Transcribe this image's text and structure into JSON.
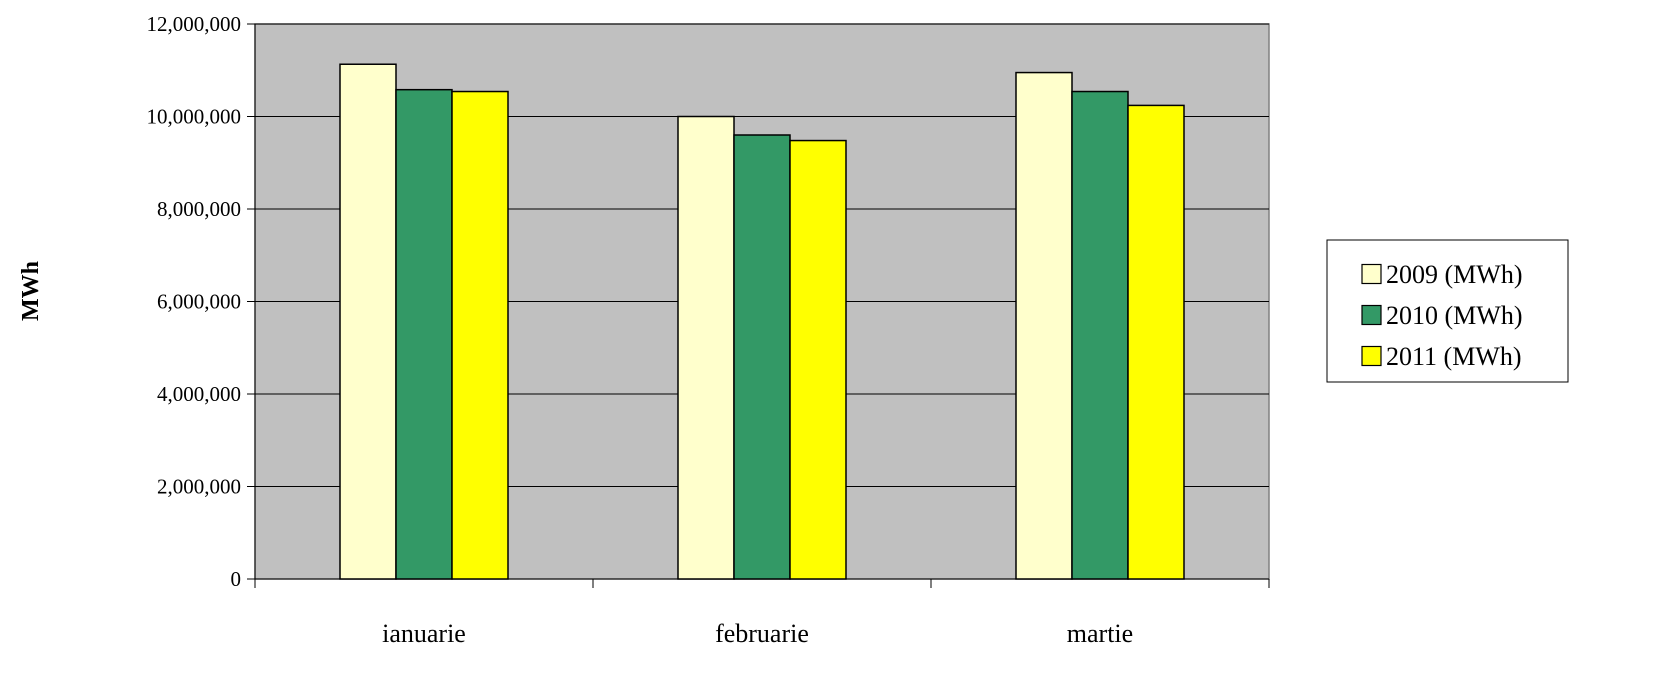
{
  "chart_data": {
    "type": "bar",
    "title": "",
    "xlabel": "",
    "ylabel": "MWh",
    "ylim": [
      0,
      12000000
    ],
    "yticks": [
      "0",
      "2,000,000",
      "4,000,000",
      "6,000,000",
      "8,000,000",
      "10,000,000",
      "12,000,000"
    ],
    "ytick_values": [
      0,
      2000000,
      4000000,
      6000000,
      8000000,
      10000000,
      12000000
    ],
    "categories": [
      "ianuarie",
      "februarie",
      "martie"
    ],
    "series": [
      {
        "name": "2009 (MWh)",
        "color": "#FFFFCC",
        "values": [
          11130000,
          10000000,
          10950000
        ]
      },
      {
        "name": "2010 (MWh)",
        "color": "#339966",
        "values": [
          10580000,
          9600000,
          10540000
        ]
      },
      {
        "name": "2011 (MWh)",
        "color": "#FFFF00",
        "values": [
          10540000,
          9480000,
          10240000
        ]
      }
    ],
    "plot_background": "#C0C0C0",
    "grid": true,
    "legend_position": "right"
  }
}
